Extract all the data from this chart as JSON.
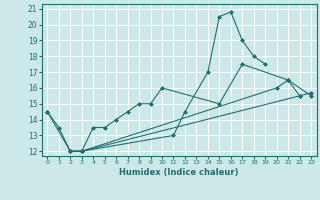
{
  "xlabel": "Humidex (Indice chaleur)",
  "xlim": [
    -0.5,
    23.5
  ],
  "ylim": [
    11.7,
    21.3
  ],
  "yticks": [
    12,
    13,
    14,
    15,
    16,
    17,
    18,
    19,
    20,
    21
  ],
  "xticks": [
    0,
    1,
    2,
    3,
    4,
    5,
    6,
    7,
    8,
    9,
    10,
    11,
    12,
    13,
    14,
    15,
    16,
    17,
    18,
    19,
    20,
    21,
    22,
    23
  ],
  "bg_color": "#cce8e8",
  "line_color": "#1e7070",
  "grid_color": "#ffffff",
  "series": [
    {
      "x": [
        0,
        1,
        2,
        3,
        4,
        5,
        6,
        7,
        8,
        9,
        10,
        15,
        17,
        21,
        22
      ],
      "y": [
        14.5,
        13.5,
        12.0,
        12.0,
        13.5,
        13.5,
        14.0,
        14.5,
        15.0,
        15.0,
        16.0,
        15.0,
        17.5,
        16.5,
        15.5
      ]
    },
    {
      "x": [
        0,
        2,
        3,
        11,
        12,
        14,
        15,
        16,
        17,
        18,
        19
      ],
      "y": [
        14.5,
        12.0,
        12.0,
        13.0,
        14.5,
        17.0,
        20.5,
        20.8,
        19.0,
        18.0,
        17.5
      ]
    },
    {
      "x": [
        2,
        3,
        20,
        21,
        23
      ],
      "y": [
        12.0,
        12.0,
        16.0,
        16.5,
        15.5
      ]
    },
    {
      "x": [
        2,
        3,
        22,
        23
      ],
      "y": [
        12.0,
        12.0,
        15.5,
        15.7
      ]
    }
  ]
}
